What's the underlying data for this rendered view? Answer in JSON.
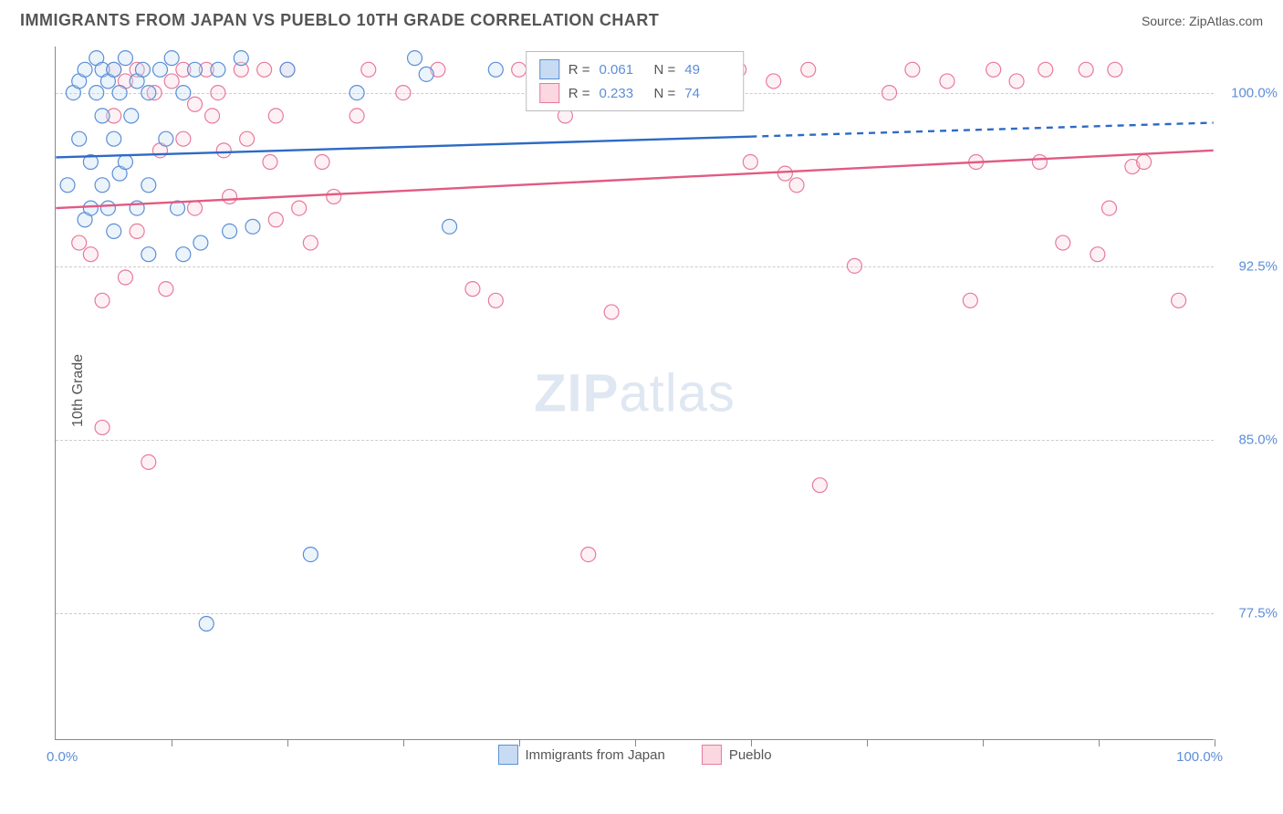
{
  "header": {
    "title": "IMMIGRANTS FROM JAPAN VS PUEBLO 10TH GRADE CORRELATION CHART",
    "source_label": "Source:",
    "source_name": "ZipAtlas.com"
  },
  "axes": {
    "y_label": "10th Grade",
    "x_min_label": "0.0%",
    "x_max_label": "100.0%",
    "x_min": 0,
    "x_max": 100,
    "y_min": 72,
    "y_max": 102,
    "y_ticks": [
      77.5,
      85.0,
      92.5,
      100.0
    ],
    "y_tick_labels": [
      "77.5%",
      "85.0%",
      "92.5%",
      "100.0%"
    ],
    "x_tick_positions": [
      10,
      20,
      30,
      40,
      50,
      60,
      70,
      80,
      90,
      100
    ],
    "tick_label_color": "#5c8ed6",
    "grid_color": "#cccccc",
    "axis_color": "#888888"
  },
  "series": {
    "a": {
      "name": "Immigrants from Japan",
      "color_fill": "#c7dcf3",
      "color_stroke": "#5c8ed6",
      "line_color": "#2d6ac4",
      "R": "0.061",
      "N": "49",
      "regression": {
        "x1": 0,
        "y1": 97.2,
        "x2": 60,
        "y2": 98.1,
        "dash_x2": 100,
        "dash_y2": 98.7
      },
      "points": [
        [
          1,
          96
        ],
        [
          1.5,
          100
        ],
        [
          2,
          98
        ],
        [
          2,
          100.5
        ],
        [
          2.5,
          94.5
        ],
        [
          2.5,
          101
        ],
        [
          3,
          95
        ],
        [
          3,
          97
        ],
        [
          3.5,
          100
        ],
        [
          3.5,
          101.5
        ],
        [
          4,
          96
        ],
        [
          4,
          99
        ],
        [
          4,
          101
        ],
        [
          4.5,
          95
        ],
        [
          4.5,
          100.5
        ],
        [
          5,
          94
        ],
        [
          5,
          98
        ],
        [
          5,
          101
        ],
        [
          5.5,
          96.5
        ],
        [
          5.5,
          100
        ],
        [
          6,
          97
        ],
        [
          6,
          101.5
        ],
        [
          6.5,
          99
        ],
        [
          7,
          95
        ],
        [
          7,
          100.5
        ],
        [
          7.5,
          101
        ],
        [
          8,
          93
        ],
        [
          8,
          96
        ],
        [
          8,
          100
        ],
        [
          9,
          101
        ],
        [
          9.5,
          98
        ],
        [
          10,
          101.5
        ],
        [
          10.5,
          95
        ],
        [
          11,
          93
        ],
        [
          11,
          100
        ],
        [
          12,
          101
        ],
        [
          12.5,
          93.5
        ],
        [
          13,
          77
        ],
        [
          14,
          101
        ],
        [
          15,
          94
        ],
        [
          16,
          101.5
        ],
        [
          17,
          94.2
        ],
        [
          20,
          101
        ],
        [
          22,
          80
        ],
        [
          26,
          100
        ],
        [
          31,
          101.5
        ],
        [
          32,
          100.8
        ],
        [
          34,
          94.2
        ],
        [
          38,
          101
        ]
      ]
    },
    "b": {
      "name": "Pueblo",
      "color_fill": "#fbd7e1",
      "color_stroke": "#e77a9a",
      "line_color": "#e15a82",
      "R": "0.233",
      "N": "74",
      "regression": {
        "x1": 0,
        "y1": 95.0,
        "x2": 100,
        "y2": 97.5
      },
      "points": [
        [
          2,
          93.5
        ],
        [
          3,
          93
        ],
        [
          4,
          85.5
        ],
        [
          4,
          91
        ],
        [
          5,
          99
        ],
        [
          5,
          101
        ],
        [
          6,
          100.5
        ],
        [
          6,
          92
        ],
        [
          7,
          94
        ],
        [
          7,
          101
        ],
        [
          8,
          84
        ],
        [
          8.5,
          100
        ],
        [
          9,
          97.5
        ],
        [
          9.5,
          91.5
        ],
        [
          10,
          100.5
        ],
        [
          11,
          98
        ],
        [
          11,
          101
        ],
        [
          12,
          99.5
        ],
        [
          12,
          95
        ],
        [
          13,
          101
        ],
        [
          13.5,
          99
        ],
        [
          14,
          100
        ],
        [
          14.5,
          97.5
        ],
        [
          15,
          95.5
        ],
        [
          16,
          101
        ],
        [
          16.5,
          98
        ],
        [
          18,
          101
        ],
        [
          18.5,
          97
        ],
        [
          19,
          94.5
        ],
        [
          19,
          99
        ],
        [
          20,
          101
        ],
        [
          21,
          95
        ],
        [
          22,
          93.5
        ],
        [
          23,
          97
        ],
        [
          24,
          95.5
        ],
        [
          26,
          99
        ],
        [
          27,
          101
        ],
        [
          30,
          100
        ],
        [
          33,
          101
        ],
        [
          36,
          91.5
        ],
        [
          38,
          91
        ],
        [
          40,
          101
        ],
        [
          44,
          99
        ],
        [
          45,
          101
        ],
        [
          46,
          80
        ],
        [
          47,
          100.5
        ],
        [
          48,
          90.5
        ],
        [
          50,
          100.5
        ],
        [
          53,
          101
        ],
        [
          59,
          101
        ],
        [
          60,
          97
        ],
        [
          62,
          100.5
        ],
        [
          63,
          96.5
        ],
        [
          64,
          96
        ],
        [
          65,
          101
        ],
        [
          66,
          83
        ],
        [
          69,
          92.5
        ],
        [
          72,
          100
        ],
        [
          74,
          101
        ],
        [
          77,
          100.5
        ],
        [
          79,
          91
        ],
        [
          79.5,
          97
        ],
        [
          81,
          101
        ],
        [
          83,
          100.5
        ],
        [
          85,
          97
        ],
        [
          85.5,
          101
        ],
        [
          87,
          93.5
        ],
        [
          89,
          101
        ],
        [
          90,
          93
        ],
        [
          91,
          95
        ],
        [
          91.5,
          101
        ],
        [
          93,
          96.8
        ],
        [
          94,
          97
        ],
        [
          97,
          91
        ]
      ]
    }
  },
  "legend": {
    "R_label": "R =",
    "N_label": "N ="
  },
  "watermark": {
    "bold": "ZIP",
    "light": "atlas"
  },
  "style": {
    "marker_radius": 8,
    "marker_fill_opacity": 0.35,
    "line_width": 2.4,
    "bg": "#ffffff"
  }
}
